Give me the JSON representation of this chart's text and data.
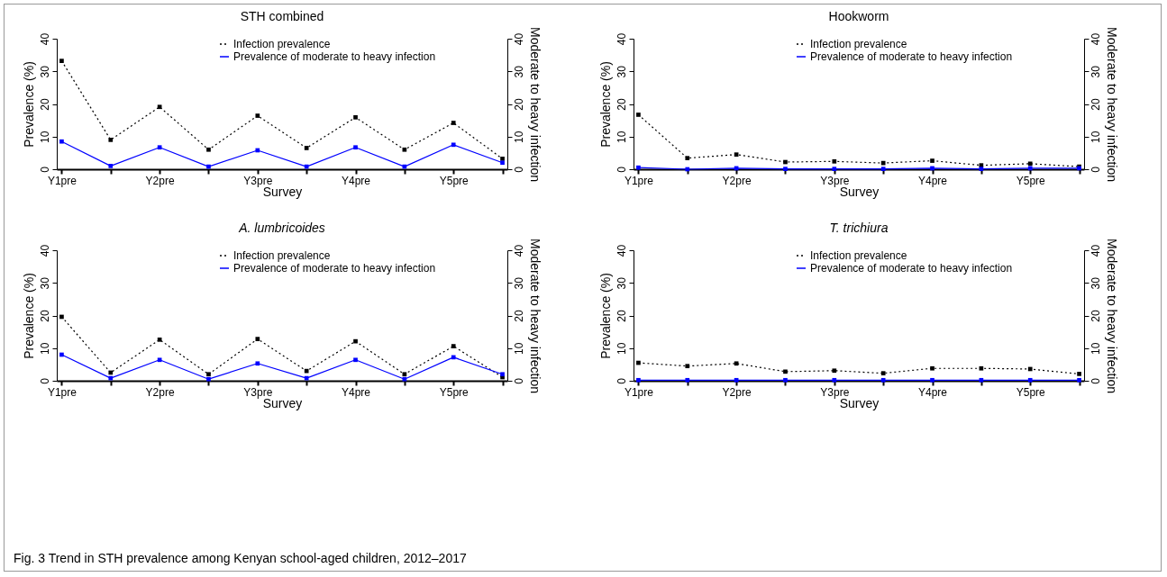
{
  "chart_data": [
    {
      "type": "line",
      "title": "STH combined",
      "xlabel": "Survey",
      "ylabel": "Prevalence (%)",
      "y2label": "Moderate to heavy infection",
      "categories": [
        "Y1pre",
        null,
        "Y2pre",
        null,
        "Y3pre",
        null,
        "Y4pre",
        null,
        "Y5pre",
        null
      ],
      "ylim": [
        0,
        40
      ],
      "yticks": [
        0,
        10,
        20,
        30,
        40
      ],
      "y2lim": [
        0,
        40
      ],
      "y2ticks": [
        0,
        10,
        20,
        30,
        40
      ],
      "grid": false,
      "legend": "top right",
      "marker": "square",
      "series": [
        {
          "name": "Infection prevalence",
          "color": "#000000",
          "line_style": "dotted",
          "values": [
            33.2,
            9,
            19.1,
            6,
            16.4,
            6.5,
            15.9,
            6,
            14.2,
            3.2
          ]
        },
        {
          "name": "Prevalence of moderate to heavy infection",
          "color": "#0000ff",
          "line_style": "solid",
          "axis": "y2",
          "values": [
            8.5,
            1,
            6.7,
            0.8,
            5.8,
            0.8,
            6.7,
            0.8,
            7.5,
            2
          ]
        }
      ]
    },
    {
      "type": "line",
      "title": "Hookworm",
      "xlabel": "Survey",
      "ylabel": "Prevalence (%)",
      "y2label": "Moderate to heavy infection",
      "categories": [
        "Y1pre",
        null,
        "Y2pre",
        null,
        "Y3pre",
        null,
        "Y4pre",
        null,
        "Y5pre",
        null
      ],
      "ylim": [
        0,
        40
      ],
      "yticks": [
        0,
        10,
        20,
        30,
        40
      ],
      "y2lim": [
        0,
        40
      ],
      "y2ticks": [
        0,
        10,
        20,
        30,
        40
      ],
      "grid": false,
      "legend": "top right",
      "marker": "square",
      "series": [
        {
          "name": "Infection prevalence",
          "color": "#000000",
          "line_style": "dotted",
          "values": [
            16.7,
            3.4,
            4.5,
            2.2,
            2.4,
            1.9,
            2.6,
            1.2,
            1.7,
            0.8
          ]
        },
        {
          "name": "Prevalence of moderate to heavy infection",
          "color": "#0000ff",
          "line_style": "solid",
          "axis": "y2",
          "values": [
            0.5,
            0,
            0.3,
            0.1,
            0.1,
            0.1,
            0.3,
            0.1,
            0.3,
            0.3
          ]
        }
      ]
    },
    {
      "type": "line",
      "title": "A. lumbricoides",
      "xlabel": "Survey",
      "ylabel": "Prevalence (%)",
      "y2label": "Moderate to heavy infection",
      "categories": [
        "Y1pre",
        null,
        "Y2pre",
        null,
        "Y3pre",
        null,
        "Y4pre",
        null,
        "Y5pre",
        null
      ],
      "ylim": [
        0,
        40
      ],
      "yticks": [
        0,
        10,
        20,
        30,
        40
      ],
      "y2lim": [
        0,
        40
      ],
      "y2ticks": [
        0,
        10,
        20,
        30,
        40
      ],
      "grid": false,
      "legend": "top right",
      "marker": "square",
      "series": [
        {
          "name": "Infection prevalence",
          "color": "#000000",
          "line_style": "dotted",
          "values": [
            19.6,
            2.5,
            12.6,
            2,
            12.8,
            3,
            12.1,
            2,
            10.6,
            1.1
          ]
        },
        {
          "name": "Prevalence of moderate to heavy infection",
          "color": "#0000ff",
          "line_style": "solid",
          "axis": "y2",
          "values": [
            8,
            0.8,
            6.4,
            0.5,
            5.3,
            0.8,
            6.4,
            0.5,
            7.2,
            2
          ]
        }
      ]
    },
    {
      "type": "line",
      "title": "T. trichiura",
      "xlabel": "Survey",
      "ylabel": "Prevalence (%)",
      "y2label": "Moderate to heavy infection",
      "categories": [
        "Y1pre",
        null,
        "Y2pre",
        null,
        "Y3pre",
        null,
        "Y4pre",
        null,
        "Y5pre",
        null
      ],
      "ylim": [
        0,
        40
      ],
      "yticks": [
        0,
        10,
        20,
        30,
        40
      ],
      "y2lim": [
        0,
        40
      ],
      "y2ticks": [
        0,
        10,
        20,
        30,
        40
      ],
      "grid": false,
      "legend": "top right",
      "marker": "square",
      "annotations": [
        "Fig. 3 Trend in STH prevalence among Kenyan school-aged children, 2012–2017"
      ],
      "series": [
        {
          "name": "Infection prevalence",
          "color": "#000000",
          "line_style": "dotted",
          "values": [
            5.5,
            4.5,
            5.3,
            2.8,
            3.1,
            2.3,
            3.8,
            3.8,
            3.6,
            2.1
          ]
        },
        {
          "name": "Prevalence of moderate to heavy infection",
          "color": "#0000ff",
          "line_style": "solid",
          "axis": "y2",
          "values": [
            0.2,
            0.2,
            0.2,
            0.2,
            0.2,
            0.2,
            0.2,
            0.2,
            0.2,
            0.2
          ]
        }
      ]
    }
  ]
}
